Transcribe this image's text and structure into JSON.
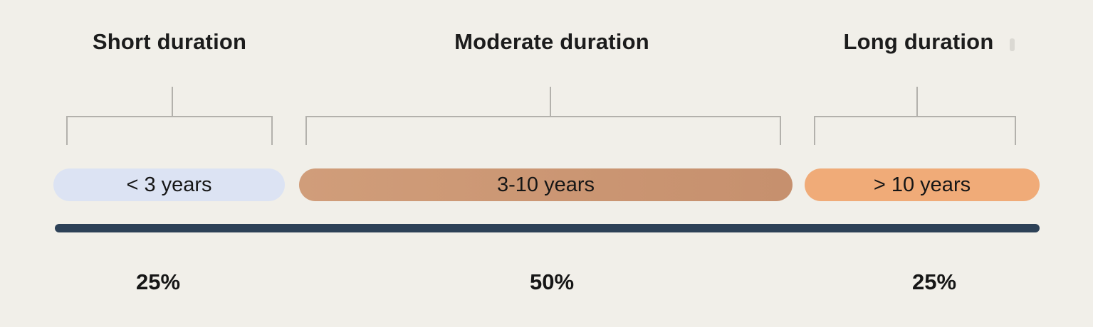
{
  "diagram": {
    "background_color": "#f1efe9",
    "bracket_color": "#b3b1ac",
    "timeline_color": "#2d4157",
    "text_color": "#1c1c1c",
    "segments": [
      {
        "id": "short",
        "title": "Short duration",
        "range_label": "< 3 years",
        "percent": "25%",
        "pill_color": "#dce3f3"
      },
      {
        "id": "moderate",
        "title": "Moderate duration",
        "range_label": "3-10 years",
        "percent": "50%",
        "pill_color": "#cb9673"
      },
      {
        "id": "long",
        "title": "Long duration",
        "range_label": "> 10 years",
        "percent": "25%",
        "pill_color": "#f0ab78"
      }
    ]
  },
  "chart_data": {
    "type": "bar",
    "title": "",
    "categories": [
      "Short duration (< 3 years)",
      "Moderate duration (3-10 years)",
      "Long duration (> 10 years)"
    ],
    "values": [
      25,
      50,
      25
    ],
    "unit": "%",
    "xlabel": "",
    "ylabel": "",
    "legend": "none",
    "grid": false
  }
}
